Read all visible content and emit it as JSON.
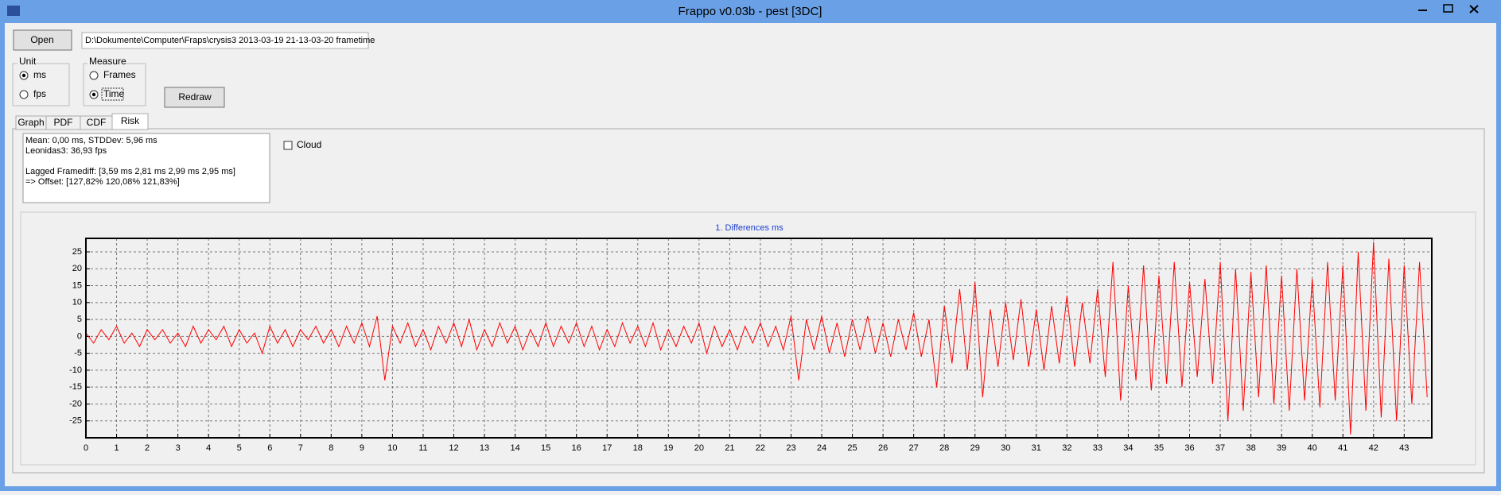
{
  "window": {
    "title": "Frappo v0.03b - pest [3DC]"
  },
  "controls": {
    "open_button": "Open",
    "path": "D:\\Dokumente\\Computer\\Fraps\\crysis3 2013-03-19 21-13-03-20 frametime",
    "unit_group": {
      "title": "Unit",
      "options": [
        "ms",
        "fps"
      ]
    },
    "measure_group": {
      "title": "Measure",
      "options": [
        "Frames",
        "Time"
      ]
    },
    "redraw_button": "Redraw",
    "tabs": [
      "Graph",
      "PDF",
      "CDF",
      "Risk"
    ],
    "cloud": "Cloud"
  },
  "info_text": [
    "Mean: 0,00 ms, STDDev: 5,96 ms",
    "Leonidas3: 36,93 fps",
    "Lagged Framediff: [3,59 ms 2,81 ms 2,99 ms 2,95 ms]",
    "=> Offset: [127,82% 120,08% 121,83%]"
  ],
  "chart_data": {
    "type": "line",
    "title": "1. Differences ms",
    "color": "#ff0000",
    "grid": true,
    "xlim": [
      0,
      43.9
    ],
    "ylim": [
      -30,
      29
    ],
    "xticks": [
      0,
      1,
      2,
      3,
      4,
      5,
      6,
      7,
      8,
      9,
      10,
      11,
      12,
      13,
      14,
      15,
      16,
      17,
      18,
      19,
      20,
      21,
      22,
      23,
      24,
      25,
      26,
      27,
      28,
      29,
      30,
      31,
      32,
      33,
      34,
      35,
      36,
      37,
      38,
      39,
      40,
      41,
      42,
      43
    ],
    "yticks": [
      -25,
      -20,
      -15,
      -10,
      -5,
      0,
      5,
      10,
      15,
      20,
      25
    ],
    "x": [
      0,
      0.25,
      0.5,
      0.75,
      1,
      1.25,
      1.5,
      1.75,
      2,
      2.25,
      2.5,
      2.75,
      3,
      3.25,
      3.5,
      3.75,
      4,
      4.25,
      4.5,
      4.75,
      5,
      5.25,
      5.5,
      5.75,
      6,
      6.25,
      6.5,
      6.75,
      7,
      7.25,
      7.5,
      7.75,
      8,
      8.25,
      8.5,
      8.75,
      9,
      9.25,
      9.5,
      9.75,
      10,
      10.25,
      10.5,
      10.75,
      11,
      11.25,
      11.5,
      11.75,
      12,
      12.25,
      12.5,
      12.75,
      13,
      13.25,
      13.5,
      13.75,
      14,
      14.25,
      14.5,
      14.75,
      15,
      15.25,
      15.5,
      15.75,
      16,
      16.25,
      16.5,
      16.75,
      17,
      17.25,
      17.5,
      17.75,
      18,
      18.25,
      18.5,
      18.75,
      19,
      19.25,
      19.5,
      19.75,
      20,
      20.25,
      20.5,
      20.75,
      21,
      21.25,
      21.5,
      21.75,
      22,
      22.25,
      22.5,
      22.75,
      23,
      23.25,
      23.5,
      23.75,
      24,
      24.25,
      24.5,
      24.75,
      25,
      25.25,
      25.5,
      25.75,
      26,
      26.25,
      26.5,
      26.75,
      27,
      27.25,
      27.5,
      27.75,
      28,
      28.25,
      28.5,
      28.75,
      29,
      29.25,
      29.5,
      29.75,
      30,
      30.25,
      30.5,
      30.75,
      31,
      31.25,
      31.5,
      31.75,
      32,
      32.25,
      32.5,
      32.75,
      33,
      33.25,
      33.5,
      33.75,
      34,
      34.25,
      34.5,
      34.75,
      35,
      35.25,
      35.5,
      35.75,
      36,
      36.25,
      36.5,
      36.75,
      37,
      37.25,
      37.5,
      37.75,
      38,
      38.25,
      38.5,
      38.75,
      39,
      39.25,
      39.5,
      39.75,
      40,
      40.25,
      40.5,
      40.75,
      41,
      41.25,
      41.5,
      41.75,
      42,
      42.25,
      42.5,
      42.75,
      43,
      43.25,
      43.5,
      43.75
    ],
    "values": [
      1,
      -2,
      2,
      -1,
      3,
      -2,
      1,
      -3,
      2,
      -1,
      2,
      -2,
      1,
      -3,
      3,
      -2,
      2,
      -1,
      3,
      -3,
      2,
      -2,
      1,
      -5,
      3,
      -2,
      2,
      -3,
      2,
      -1,
      3,
      -2,
      2,
      -3,
      3,
      -2,
      4,
      -3,
      6,
      -13,
      3,
      -2,
      4,
      -3,
      2,
      -4,
      3,
      -2,
      4,
      -3,
      5,
      -4,
      2,
      -3,
      4,
      -2,
      3,
      -4,
      2,
      -3,
      4,
      -3,
      3,
      -2,
      4,
      -3,
      3,
      -4,
      2,
      -3,
      4,
      -2,
      3,
      -3,
      4,
      -4,
      2,
      -3,
      3,
      -2,
      4,
      -5,
      3,
      -3,
      2,
      -4,
      3,
      -2,
      4,
      -3,
      3,
      -4,
      6,
      -13,
      5,
      -4,
      6,
      -5,
      4,
      -6,
      5,
      -4,
      6,
      -5,
      4,
      -6,
      5,
      -4,
      7,
      -6,
      5,
      -15,
      9,
      -8,
      14,
      -10,
      16,
      -18,
      8,
      -9,
      10,
      -7,
      11,
      -9,
      8,
      -10,
      9,
      -8,
      12,
      -9,
      10,
      -8,
      14,
      -12,
      22,
      -19,
      15,
      -13,
      21,
      -16,
      18,
      -14,
      22,
      -15,
      16,
      -12,
      17,
      -14,
      22,
      -25,
      20,
      -22,
      19,
      -18,
      21,
      -20,
      18,
      -22,
      20,
      -19,
      17,
      -21,
      22,
      -19,
      21,
      -29,
      25,
      -22,
      28,
      -24,
      23,
      -25,
      21,
      -20,
      22,
      -18
    ]
  }
}
